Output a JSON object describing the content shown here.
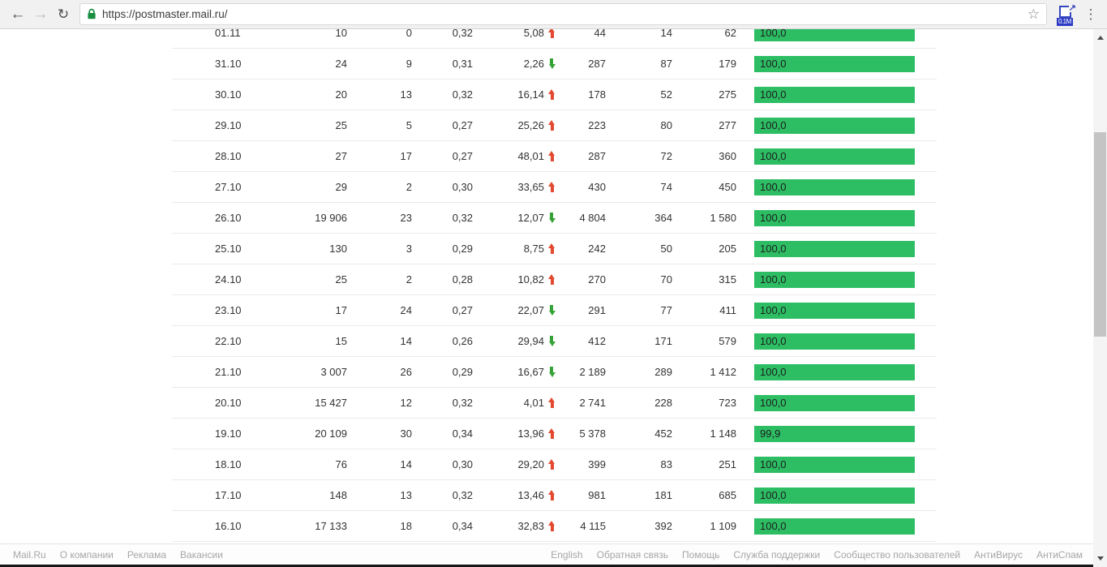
{
  "browser": {
    "url": "https://postmaster.mail.ru/",
    "extension_badge": "0.1M"
  },
  "table": {
    "bar_color": "#2dbe64",
    "arrow_up_color": "#e2492f",
    "arrow_down_color": "#35a235",
    "rows": [
      {
        "date": "01.11",
        "v1": "10",
        "v2": "0",
        "v3": "0,32",
        "change": "5,08",
        "dir": "up",
        "v4": "44",
        "v5": "14",
        "v6": "62",
        "bar_label": "100,0",
        "bar_pct": 100
      },
      {
        "date": "31.10",
        "v1": "24",
        "v2": "9",
        "v3": "0,31",
        "change": "2,26",
        "dir": "down",
        "v4": "287",
        "v5": "87",
        "v6": "179",
        "bar_label": "100,0",
        "bar_pct": 100
      },
      {
        "date": "30.10",
        "v1": "20",
        "v2": "13",
        "v3": "0,32",
        "change": "16,14",
        "dir": "up",
        "v4": "178",
        "v5": "52",
        "v6": "275",
        "bar_label": "100,0",
        "bar_pct": 100
      },
      {
        "date": "29.10",
        "v1": "25",
        "v2": "5",
        "v3": "0,27",
        "change": "25,26",
        "dir": "up",
        "v4": "223",
        "v5": "80",
        "v6": "277",
        "bar_label": "100,0",
        "bar_pct": 100
      },
      {
        "date": "28.10",
        "v1": "27",
        "v2": "17",
        "v3": "0,27",
        "change": "48,01",
        "dir": "up",
        "v4": "287",
        "v5": "72",
        "v6": "360",
        "bar_label": "100,0",
        "bar_pct": 100
      },
      {
        "date": "27.10",
        "v1": "29",
        "v2": "2",
        "v3": "0,30",
        "change": "33,65",
        "dir": "up",
        "v4": "430",
        "v5": "74",
        "v6": "450",
        "bar_label": "100,0",
        "bar_pct": 100
      },
      {
        "date": "26.10",
        "v1": "19 906",
        "v2": "23",
        "v3": "0,32",
        "change": "12,07",
        "dir": "down",
        "v4": "4 804",
        "v5": "364",
        "v6": "1 580",
        "bar_label": "100,0",
        "bar_pct": 100
      },
      {
        "date": "25.10",
        "v1": "130",
        "v2": "3",
        "v3": "0,29",
        "change": "8,75",
        "dir": "up",
        "v4": "242",
        "v5": "50",
        "v6": "205",
        "bar_label": "100,0",
        "bar_pct": 100
      },
      {
        "date": "24.10",
        "v1": "25",
        "v2": "2",
        "v3": "0,28",
        "change": "10,82",
        "dir": "up",
        "v4": "270",
        "v5": "70",
        "v6": "315",
        "bar_label": "100,0",
        "bar_pct": 100
      },
      {
        "date": "23.10",
        "v1": "17",
        "v2": "24",
        "v3": "0,27",
        "change": "22,07",
        "dir": "down",
        "v4": "291",
        "v5": "77",
        "v6": "411",
        "bar_label": "100,0",
        "bar_pct": 100
      },
      {
        "date": "22.10",
        "v1": "15",
        "v2": "14",
        "v3": "0,26",
        "change": "29,94",
        "dir": "down",
        "v4": "412",
        "v5": "171",
        "v6": "579",
        "bar_label": "100,0",
        "bar_pct": 100
      },
      {
        "date": "21.10",
        "v1": "3 007",
        "v2": "26",
        "v3": "0,29",
        "change": "16,67",
        "dir": "down",
        "v4": "2 189",
        "v5": "289",
        "v6": "1 412",
        "bar_label": "100,0",
        "bar_pct": 100
      },
      {
        "date": "20.10",
        "v1": "15 427",
        "v2": "12",
        "v3": "0,32",
        "change": "4,01",
        "dir": "up",
        "v4": "2 741",
        "v5": "228",
        "v6": "723",
        "bar_label": "100,0",
        "bar_pct": 100
      },
      {
        "date": "19.10",
        "v1": "20 109",
        "v2": "30",
        "v3": "0,34",
        "change": "13,96",
        "dir": "up",
        "v4": "5 378",
        "v5": "452",
        "v6": "1 148",
        "bar_label": "99,9",
        "bar_pct": 99.9
      },
      {
        "date": "18.10",
        "v1": "76",
        "v2": "14",
        "v3": "0,30",
        "change": "29,20",
        "dir": "up",
        "v4": "399",
        "v5": "83",
        "v6": "251",
        "bar_label": "100,0",
        "bar_pct": 100
      },
      {
        "date": "17.10",
        "v1": "148",
        "v2": "13",
        "v3": "0,32",
        "change": "13,46",
        "dir": "up",
        "v4": "981",
        "v5": "181",
        "v6": "685",
        "bar_label": "100,0",
        "bar_pct": 100
      },
      {
        "date": "16.10",
        "v1": "17 133",
        "v2": "18",
        "v3": "0,34",
        "change": "32,83",
        "dir": "up",
        "v4": "4 115",
        "v5": "392",
        "v6": "1 109",
        "bar_label": "100,0",
        "bar_pct": 100
      }
    ]
  },
  "footer": {
    "left_links": [
      "Mail.Ru",
      "О компании",
      "Реклама",
      "Вакансии"
    ],
    "right_links": [
      "English",
      "Обратная связь",
      "Помощь",
      "Служба поддержки",
      "Сообщество пользователей",
      "АнтиВирус",
      "АнтиСпам"
    ]
  }
}
